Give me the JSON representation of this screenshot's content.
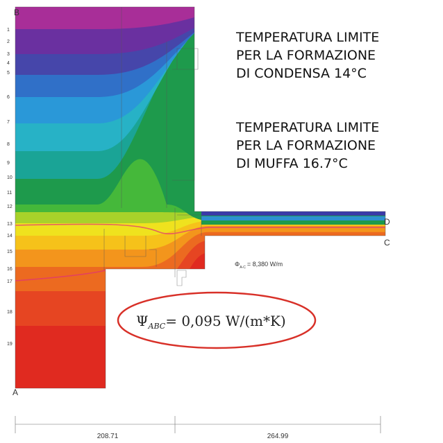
{
  "annotations": {
    "condensation": [
      "TEMPERATURA LIMITE",
      "PER LA FORMAZIONE",
      "DI CONDENSA 14°C"
    ],
    "mould": [
      "TEMPERATURA LIMITE",
      "PER LA FORMAZIONE",
      "DI MUFFA 16.7°C"
    ]
  },
  "points": {
    "a": "A",
    "b": "B",
    "c": "C",
    "d": "D"
  },
  "heat_flow": {
    "symbol": "Φ",
    "subscript": "A-C",
    "value": "= 8,380 W/m"
  },
  "psi": {
    "symbol": "Ψ",
    "subscript": "ABC",
    "value": "= 0,095 W/(m*K)"
  },
  "dimensions": [
    "208.71",
    "264.99"
  ],
  "layer_numbers": [
    "1",
    "2",
    "3",
    "4",
    "5",
    "6",
    "7",
    "8",
    "9",
    "10",
    "11",
    "12",
    "13",
    "14",
    "15",
    "16",
    "17",
    "18",
    "19"
  ]
}
